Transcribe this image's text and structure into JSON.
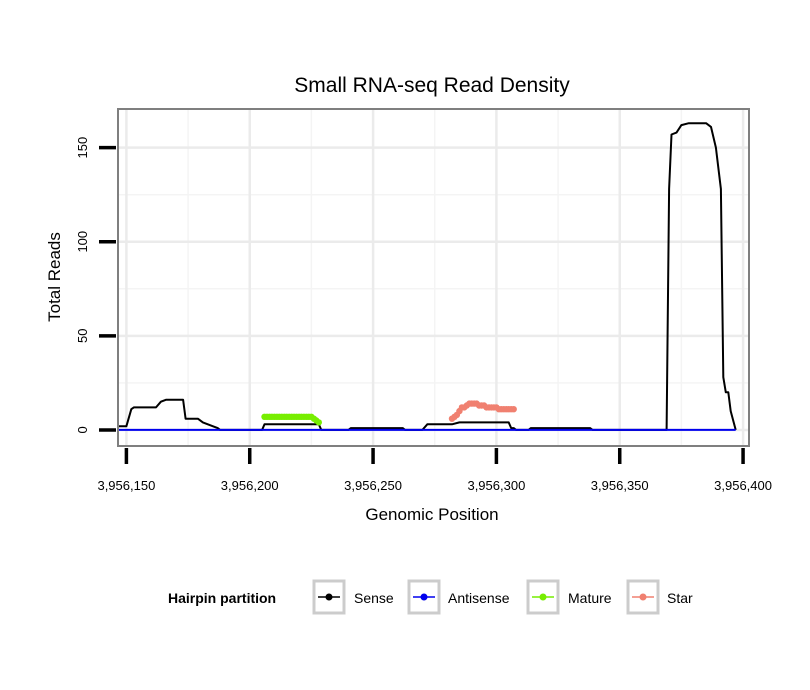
{
  "chart_data": {
    "type": "line",
    "title": "Small RNA-seq Read Density",
    "xlabel": "Genomic Position",
    "ylabel": "Total Reads",
    "xlim": [
      3956147,
      3956402
    ],
    "ylim": [
      -8,
      170
    ],
    "x_ticks": [
      3956150,
      3956200,
      3956250,
      3956300,
      3956350,
      3956400
    ],
    "x_tick_labels": [
      "3,956,150",
      "3,956,200",
      "3,956,250",
      "3,956,300",
      "3,956,350",
      "3,956,400"
    ],
    "y_ticks": [
      0,
      50,
      100,
      150
    ],
    "y_tick_labels": [
      "0",
      "50",
      "100",
      "150"
    ],
    "grid": true,
    "legend": {
      "title": "Hairpin partition",
      "placement": "bottom",
      "entries": [
        "Sense",
        "Antisense",
        "Mature",
        "Star"
      ]
    },
    "series": [
      {
        "name": "Sense",
        "color": "#000000",
        "style": "line",
        "points": [
          [
            3956147,
            2
          ],
          [
            3956150,
            2
          ],
          [
            3956152,
            11
          ],
          [
            3956153,
            12
          ],
          [
            3956162,
            12
          ],
          [
            3956164,
            15
          ],
          [
            3956166,
            16
          ],
          [
            3956173,
            16
          ],
          [
            3956174,
            6
          ],
          [
            3956179,
            6
          ],
          [
            3956181,
            4
          ],
          [
            3956185,
            2
          ],
          [
            3956187,
            1
          ],
          [
            3956188,
            0
          ],
          [
            3956205,
            0
          ],
          [
            3956206,
            3
          ],
          [
            3956228,
            3
          ],
          [
            3956229,
            0
          ],
          [
            3956240,
            0
          ],
          [
            3956241,
            1
          ],
          [
            3956262,
            1
          ],
          [
            3956263,
            0
          ],
          [
            3956270,
            0
          ],
          [
            3956272,
            3
          ],
          [
            3956282,
            3
          ],
          [
            3956285,
            4
          ],
          [
            3956305,
            4
          ],
          [
            3956306,
            1
          ],
          [
            3956307,
            1
          ],
          [
            3956308,
            0
          ],
          [
            3956313,
            0
          ],
          [
            3956314,
            1
          ],
          [
            3956338,
            1
          ],
          [
            3956339,
            0
          ],
          [
            3956369,
            0
          ],
          [
            3956370,
            128
          ],
          [
            3956371,
            157
          ],
          [
            3956373,
            158
          ],
          [
            3956375,
            162
          ],
          [
            3956378,
            163
          ],
          [
            3956385,
            163
          ],
          [
            3956387,
            161
          ],
          [
            3956389,
            150
          ],
          [
            3956391,
            128
          ],
          [
            3956392,
            28
          ],
          [
            3956393,
            20
          ],
          [
            3956394,
            20
          ],
          [
            3956395,
            10
          ],
          [
            3956397,
            0
          ]
        ]
      },
      {
        "name": "Antisense",
        "color": "#0000ee",
        "style": "line",
        "points": [
          [
            3956147,
            0
          ],
          [
            3956397,
            0
          ]
        ]
      },
      {
        "name": "Mature",
        "color": "#77ee00",
        "style": "points-line",
        "points": [
          [
            3956206,
            7
          ],
          [
            3956207,
            7
          ],
          [
            3956208,
            7
          ],
          [
            3956209,
            7
          ],
          [
            3956210,
            7
          ],
          [
            3956211,
            7
          ],
          [
            3956212,
            7
          ],
          [
            3956213,
            7
          ],
          [
            3956214,
            7
          ],
          [
            3956215,
            7
          ],
          [
            3956216,
            7
          ],
          [
            3956217,
            7
          ],
          [
            3956218,
            7
          ],
          [
            3956219,
            7
          ],
          [
            3956220,
            7
          ],
          [
            3956221,
            7
          ],
          [
            3956222,
            7
          ],
          [
            3956223,
            7
          ],
          [
            3956224,
            7
          ],
          [
            3956225,
            7
          ],
          [
            3956226,
            6
          ],
          [
            3956227,
            5
          ],
          [
            3956228,
            4
          ]
        ]
      },
      {
        "name": "Star",
        "color": "#f08070",
        "style": "points-line",
        "points": [
          [
            3956282,
            6
          ],
          [
            3956283,
            7
          ],
          [
            3956284,
            8
          ],
          [
            3956285,
            10
          ],
          [
            3956286,
            12
          ],
          [
            3956287,
            12
          ],
          [
            3956288,
            13
          ],
          [
            3956289,
            14
          ],
          [
            3956290,
            14
          ],
          [
            3956291,
            14
          ],
          [
            3956292,
            14
          ],
          [
            3956293,
            13
          ],
          [
            3956294,
            13
          ],
          [
            3956295,
            13
          ],
          [
            3956296,
            12
          ],
          [
            3956297,
            12
          ],
          [
            3956298,
            12
          ],
          [
            3956299,
            12
          ],
          [
            3956300,
            12
          ],
          [
            3956301,
            11
          ],
          [
            3956302,
            11
          ],
          [
            3956303,
            11
          ],
          [
            3956304,
            11
          ],
          [
            3956305,
            11
          ],
          [
            3956306,
            11
          ],
          [
            3956307,
            11
          ]
        ]
      }
    ]
  }
}
